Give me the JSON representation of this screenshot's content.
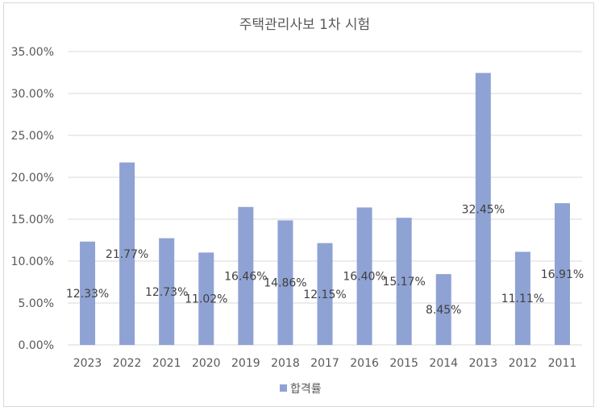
{
  "chart_data": {
    "type": "bar",
    "title": "주택관리사보 1차 시험",
    "categories": [
      "2023",
      "2022",
      "2021",
      "2020",
      "2019",
      "2018",
      "2017",
      "2016",
      "2015",
      "2014",
      "2013",
      "2012",
      "2011"
    ],
    "series": [
      {
        "name": "합격률",
        "values": [
          12.33,
          21.77,
          12.73,
          11.02,
          16.46,
          14.86,
          12.15,
          16.4,
          15.17,
          8.45,
          32.45,
          11.11,
          16.91
        ],
        "labels": [
          "12.33%",
          "21.77%",
          "12.73%",
          "11.02%",
          "16.46%",
          "14.86%",
          "12.15%",
          "16.40%",
          "15.17%",
          "8.45%",
          "32.45%",
          "11.11%",
          "16.91%"
        ],
        "color": "#8fa2d4"
      }
    ],
    "y_ticks": [
      "0.00%",
      "5.00%",
      "10.00%",
      "15.00%",
      "20.00%",
      "25.00%",
      "30.00%",
      "35.00%"
    ],
    "ylim": [
      0,
      35
    ],
    "grid": true,
    "legend": "bottom"
  }
}
